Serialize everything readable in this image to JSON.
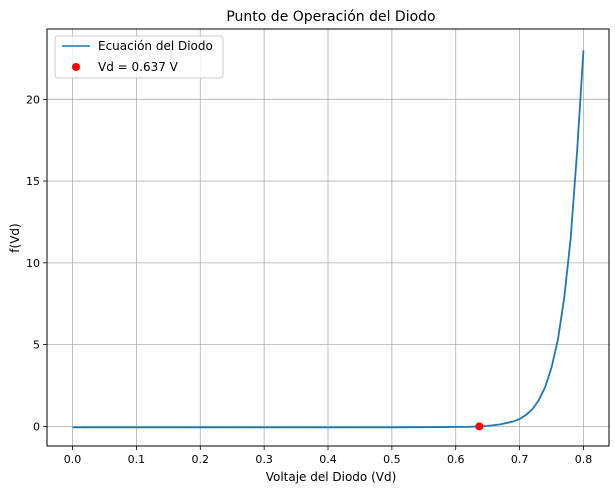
{
  "chart_data": {
    "type": "line",
    "title": "Punto de Operación del Diodo",
    "xlabel": "Voltaje del Diodo (Vd)",
    "ylabel": "f(Vd)",
    "xlim": [
      -0.04,
      0.84
    ],
    "ylim": [
      -1.2,
      24.3
    ],
    "xticks": [
      0.0,
      0.1,
      0.2,
      0.3,
      0.4,
      0.5,
      0.6,
      0.7,
      0.8
    ],
    "xtick_labels": [
      "0.0",
      "0.1",
      "0.2",
      "0.3",
      "0.4",
      "0.5",
      "0.6",
      "0.7",
      "0.8"
    ],
    "yticks": [
      0,
      5,
      10,
      15,
      20
    ],
    "ytick_labels": [
      "0",
      "5",
      "10",
      "15",
      "20"
    ],
    "grid": true,
    "legend_position": "top-left",
    "series": [
      {
        "name": "Ecuación del Diodo",
        "kind": "line",
        "color": "#1f77b4",
        "x": [
          0.0,
          0.1,
          0.2,
          0.3,
          0.4,
          0.5,
          0.55,
          0.6,
          0.62,
          0.637,
          0.65,
          0.67,
          0.69,
          0.7,
          0.71,
          0.72,
          0.73,
          0.74,
          0.75,
          0.76,
          0.77,
          0.78,
          0.79,
          0.8
        ],
        "y": [
          -0.06,
          -0.06,
          -0.06,
          -0.06,
          -0.06,
          -0.06,
          -0.05,
          -0.04,
          -0.03,
          0.0,
          0.03,
          0.12,
          0.3,
          0.45,
          0.7,
          1.05,
          1.6,
          2.4,
          3.6,
          5.3,
          7.9,
          11.5,
          16.8,
          23.0
        ]
      },
      {
        "name": "Vd = 0.637 V",
        "kind": "scatter",
        "color": "#ff0000",
        "x": [
          0.637
        ],
        "y": [
          0.0
        ]
      }
    ]
  }
}
